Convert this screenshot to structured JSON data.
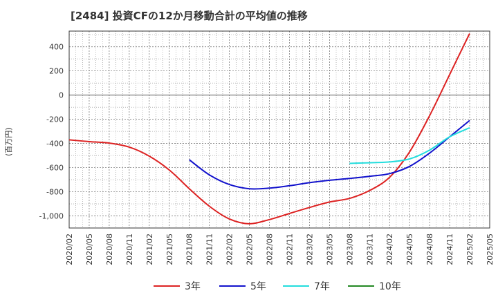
{
  "chart_data": {
    "type": "line",
    "title": "[2484]  投資CFの12か月移動合計の平均値の推移",
    "xlabel": "",
    "ylabel": "(百万円)",
    "ylim": [
      -1100,
      530
    ],
    "yticks": [
      400,
      200,
      0,
      -200,
      -400,
      -600,
      -800,
      -1000
    ],
    "ytick_labels": [
      "400",
      "200",
      "0",
      "-200",
      "-400",
      "-600",
      "-800",
      "-1,000"
    ],
    "xticks": [
      "2020/02",
      "2020/05",
      "2020/08",
      "2020/11",
      "2021/02",
      "2021/05",
      "2021/08",
      "2021/11",
      "2022/02",
      "2022/05",
      "2022/08",
      "2022/11",
      "2023/02",
      "2023/05",
      "2023/08",
      "2023/11",
      "2024/02",
      "2024/05",
      "2024/08",
      "2024/11",
      "2025/02",
      "2025/05"
    ],
    "grid": true,
    "legend_position": "bottom",
    "series": [
      {
        "name": "3年",
        "color": "#dd2222",
        "points": [
          [
            "2020/02",
            -370
          ],
          [
            "2020/05",
            -385
          ],
          [
            "2020/08",
            -397
          ],
          [
            "2020/11",
            -430
          ],
          [
            "2021/02",
            -505
          ],
          [
            "2021/05",
            -620
          ],
          [
            "2021/08",
            -775
          ],
          [
            "2021/11",
            -920
          ],
          [
            "2022/02",
            -1025
          ],
          [
            "2022/05",
            -1065
          ],
          [
            "2022/08",
            -1030
          ],
          [
            "2022/11",
            -980
          ],
          [
            "2023/02",
            -930
          ],
          [
            "2023/05",
            -885
          ],
          [
            "2023/08",
            -855
          ],
          [
            "2023/11",
            -790
          ],
          [
            "2024/02",
            -680
          ],
          [
            "2024/05",
            -470
          ],
          [
            "2024/08",
            -170
          ],
          [
            "2024/11",
            170
          ],
          [
            "2025/02",
            510
          ]
        ]
      },
      {
        "name": "5年",
        "color": "#1111cc",
        "points": [
          [
            "2021/08",
            -535
          ],
          [
            "2021/11",
            -660
          ],
          [
            "2022/02",
            -740
          ],
          [
            "2022/05",
            -775
          ],
          [
            "2022/08",
            -770
          ],
          [
            "2022/11",
            -750
          ],
          [
            "2023/02",
            -725
          ],
          [
            "2023/05",
            -705
          ],
          [
            "2023/08",
            -690
          ],
          [
            "2023/11",
            -672
          ],
          [
            "2024/02",
            -650
          ],
          [
            "2024/05",
            -590
          ],
          [
            "2024/08",
            -480
          ],
          [
            "2024/11",
            -345
          ],
          [
            "2025/02",
            -210
          ]
        ]
      },
      {
        "name": "7年",
        "color": "#22dddd",
        "points": [
          [
            "2023/08",
            -565
          ],
          [
            "2023/11",
            -560
          ],
          [
            "2024/02",
            -553
          ],
          [
            "2024/05",
            -528
          ],
          [
            "2024/08",
            -455
          ],
          [
            "2024/11",
            -345
          ],
          [
            "2025/02",
            -270
          ]
        ]
      },
      {
        "name": "10年",
        "color": "#228822",
        "points": []
      }
    ]
  }
}
